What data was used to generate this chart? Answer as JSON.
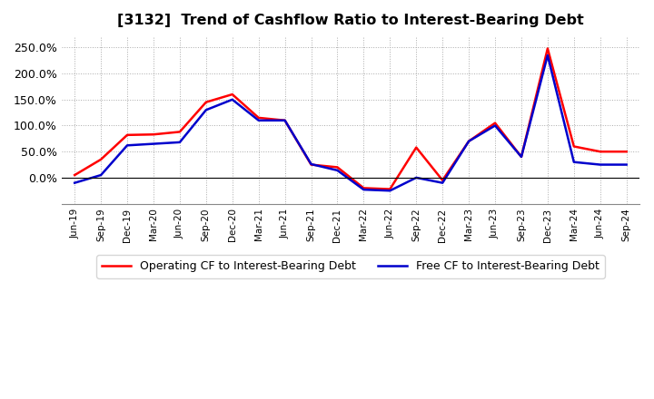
{
  "title": "[3132]  Trend of Cashflow Ratio to Interest-Bearing Debt",
  "x_labels": [
    "Jun-19",
    "Sep-19",
    "Dec-19",
    "Mar-20",
    "Jun-20",
    "Sep-20",
    "Dec-20",
    "Mar-21",
    "Jun-21",
    "Sep-21",
    "Dec-21",
    "Mar-22",
    "Jun-22",
    "Sep-22",
    "Dec-22",
    "Mar-23",
    "Jun-23",
    "Sep-23",
    "Dec-23",
    "Mar-24",
    "Jun-24",
    "Sep-24"
  ],
  "operating_cf": [
    5.0,
    35.0,
    82.0,
    83.0,
    88.0,
    145.0,
    160.0,
    115.0,
    110.0,
    25.0,
    20.0,
    -20.0,
    -22.0,
    58.0,
    -5.0,
    70.0,
    105.0,
    40.0,
    248.0,
    60.0,
    50.0,
    50.0
  ],
  "free_cf": [
    -10.0,
    5.0,
    62.0,
    65.0,
    68.0,
    130.0,
    150.0,
    110.0,
    110.0,
    26.0,
    14.0,
    -23.0,
    -25.0,
    0.0,
    -10.0,
    70.0,
    100.0,
    40.0,
    235.0,
    30.0,
    25.0,
    25.0
  ],
  "operating_color": "#ff0000",
  "free_cf_color": "#0000cc",
  "ylim": [
    -50,
    270
  ],
  "yticks": [
    0.0,
    50.0,
    100.0,
    150.0,
    200.0,
    250.0
  ],
  "ytick_labels": [
    "0.0%",
    "50.0%",
    "100.0%",
    "150.0%",
    "200.0%",
    "250.0%"
  ],
  "legend_operating": "Operating CF to Interest-Bearing Debt",
  "legend_free": "Free CF to Interest-Bearing Debt",
  "bg_color": "#ffffff",
  "plot_bg_color": "#ffffff",
  "grid_color": "#aaaaaa",
  "linewidth": 1.8
}
